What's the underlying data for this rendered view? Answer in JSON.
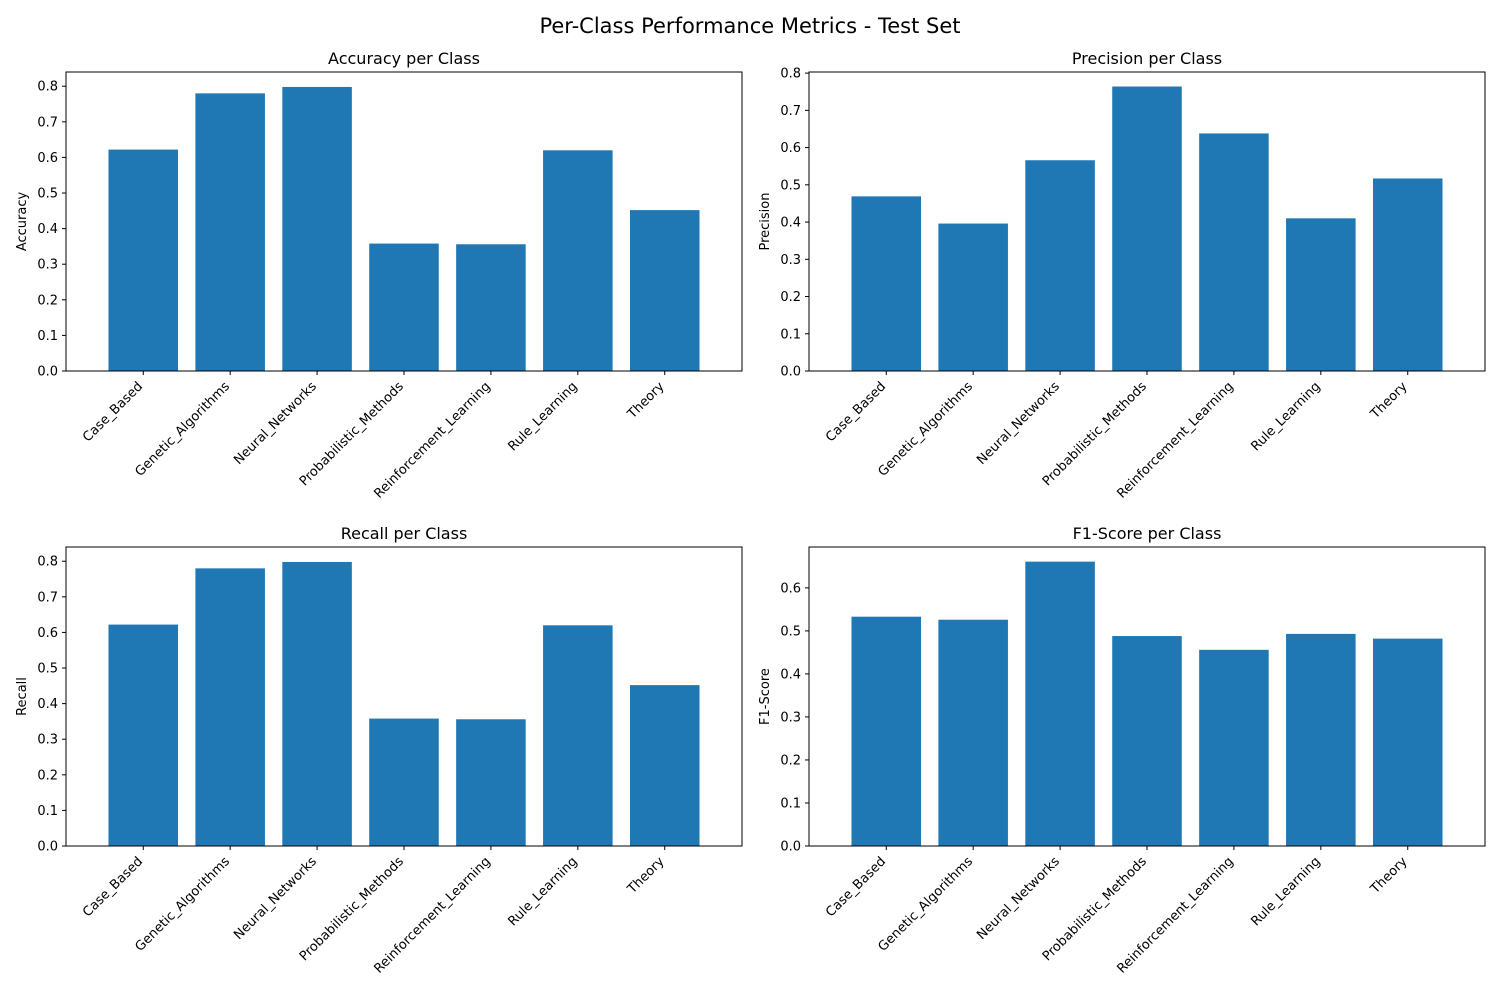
{
  "figure": {
    "title": "Per-Class Performance Metrics - Test Set"
  },
  "chart_data": [
    {
      "type": "bar",
      "title": "Accuracy per Class",
      "xlabel": "",
      "ylabel": "Accuracy",
      "categories": [
        "Case_Based",
        "Genetic_Algorithms",
        "Neural_Networks",
        "Probabilistic_Methods",
        "Reinforcement_Learning",
        "Rule_Learning",
        "Theory"
      ],
      "values": [
        0.622,
        0.78,
        0.798,
        0.358,
        0.356,
        0.62,
        0.452
      ],
      "ylim": [
        0,
        0.84
      ],
      "yticks": [
        "0.0",
        "0.1",
        "0.2",
        "0.3",
        "0.4",
        "0.5",
        "0.6",
        "0.7",
        "0.8"
      ],
      "ytick_values": [
        0,
        0.1,
        0.2,
        0.3,
        0.4,
        0.5,
        0.6,
        0.7,
        0.8
      ],
      "color": "#1f77b4",
      "grid": false
    },
    {
      "type": "bar",
      "title": "Precision per Class",
      "xlabel": "",
      "ylabel": "Precision",
      "categories": [
        "Case_Based",
        "Genetic_Algorithms",
        "Neural_Networks",
        "Probabilistic_Methods",
        "Reinforcement_Learning",
        "Rule_Learning",
        "Theory"
      ],
      "values": [
        0.469,
        0.396,
        0.566,
        0.764,
        0.638,
        0.41,
        0.517
      ],
      "ylim": [
        0,
        0.803
      ],
      "yticks": [
        "0.0",
        "0.1",
        "0.2",
        "0.3",
        "0.4",
        "0.5",
        "0.6",
        "0.7",
        "0.8"
      ],
      "ytick_values": [
        0,
        0.1,
        0.2,
        0.3,
        0.4,
        0.5,
        0.6,
        0.7,
        0.8
      ],
      "color": "#1f77b4",
      "grid": false
    },
    {
      "type": "bar",
      "title": "Recall per Class",
      "xlabel": "",
      "ylabel": "Recall",
      "categories": [
        "Case_Based",
        "Genetic_Algorithms",
        "Neural_Networks",
        "Probabilistic_Methods",
        "Reinforcement_Learning",
        "Rule_Learning",
        "Theory"
      ],
      "values": [
        0.622,
        0.78,
        0.798,
        0.358,
        0.356,
        0.62,
        0.452
      ],
      "ylim": [
        0,
        0.84
      ],
      "yticks": [
        "0.0",
        "0.1",
        "0.2",
        "0.3",
        "0.4",
        "0.5",
        "0.6",
        "0.7",
        "0.8"
      ],
      "ytick_values": [
        0,
        0.1,
        0.2,
        0.3,
        0.4,
        0.5,
        0.6,
        0.7,
        0.8
      ],
      "color": "#1f77b4",
      "grid": false
    },
    {
      "type": "bar",
      "title": "F1-Score per Class",
      "xlabel": "",
      "ylabel": "F1-Score",
      "categories": [
        "Case_Based",
        "Genetic_Algorithms",
        "Neural_Networks",
        "Probabilistic_Methods",
        "Reinforcement_Learning",
        "Rule_Learning",
        "Theory"
      ],
      "values": [
        0.533,
        0.526,
        0.661,
        0.488,
        0.456,
        0.493,
        0.482
      ],
      "ylim": [
        0,
        0.695
      ],
      "yticks": [
        "0.0",
        "0.1",
        "0.2",
        "0.3",
        "0.4",
        "0.5",
        "0.6"
      ],
      "ytick_values": [
        0,
        0.1,
        0.2,
        0.3,
        0.4,
        0.5,
        0.6
      ],
      "color": "#1f77b4",
      "grid": false
    }
  ]
}
